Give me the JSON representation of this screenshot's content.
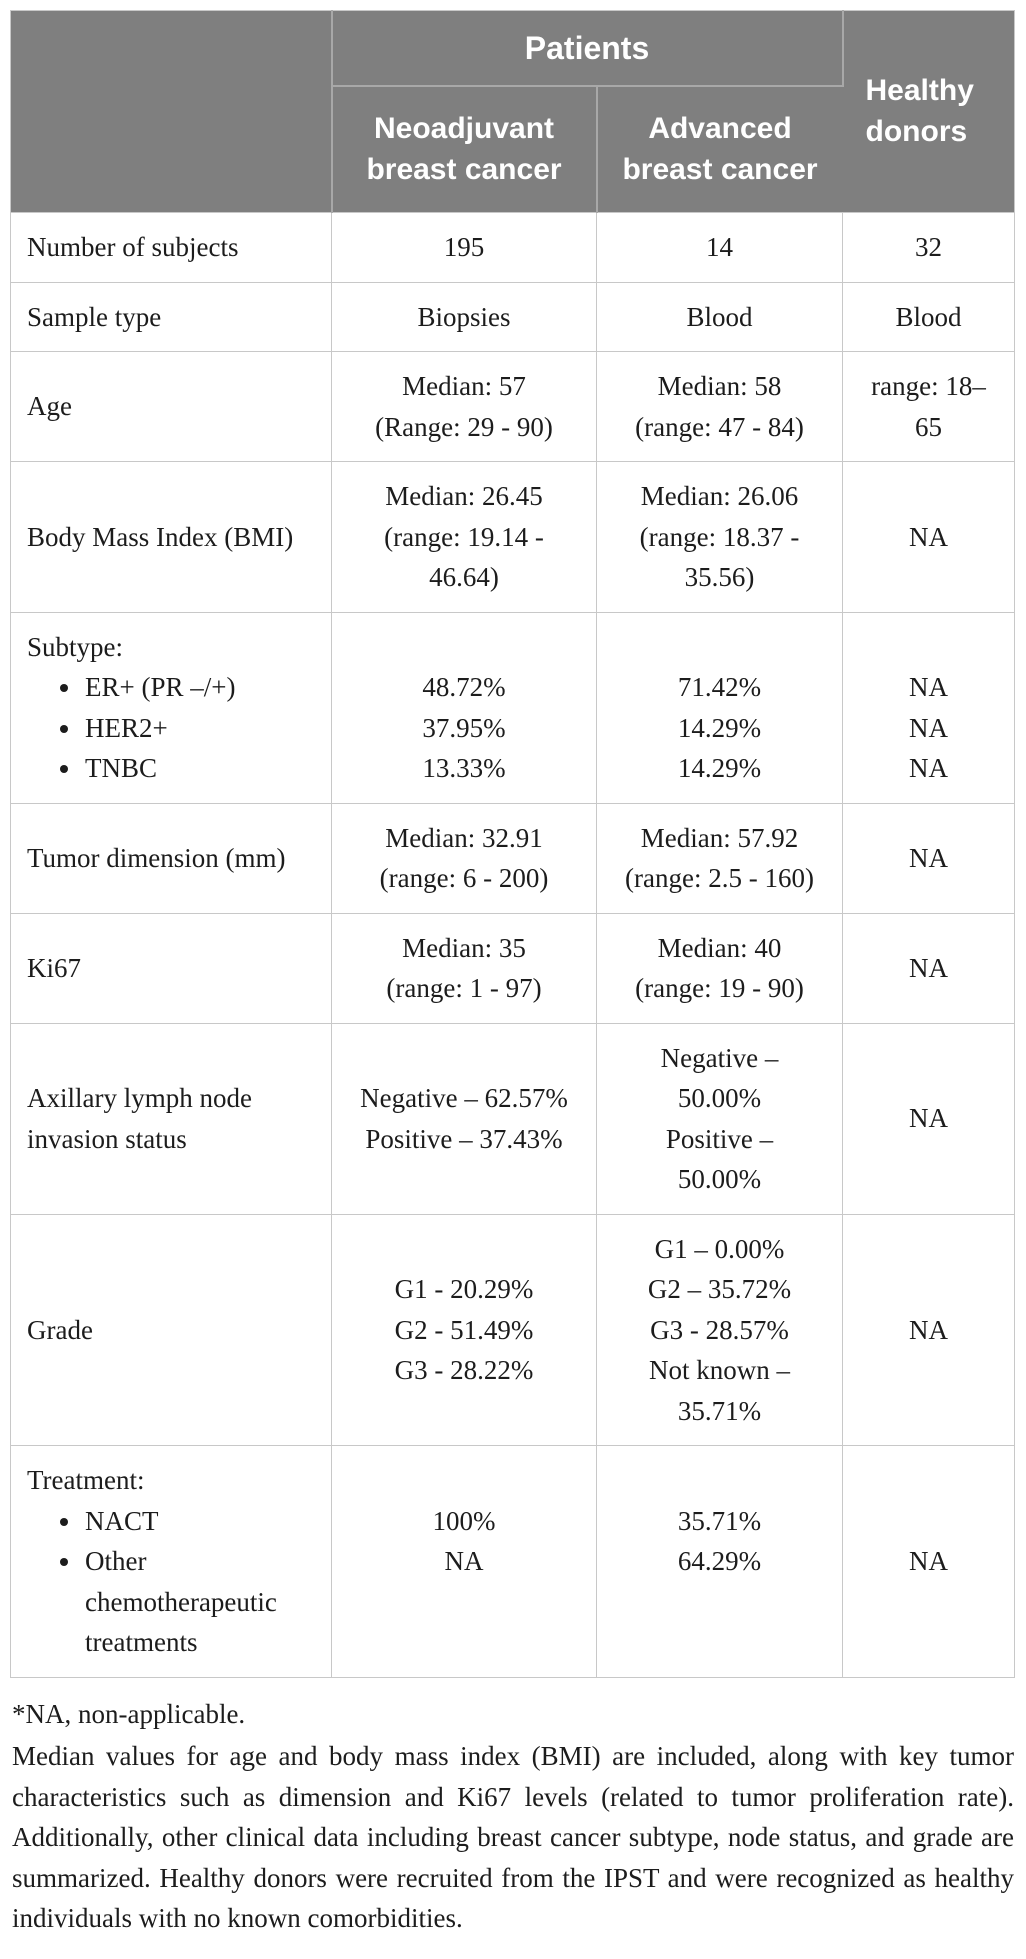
{
  "table": {
    "header": {
      "group_label": "Patients",
      "columns": [
        "Neoadjuvant breast cancer",
        "Advanced breast cancer"
      ],
      "healthy_label": "Healthy donors"
    },
    "rows": [
      {
        "label": "Number of subjects",
        "valign": "middle",
        "cells": [
          [
            "195"
          ],
          [
            "14"
          ],
          [
            "32"
          ]
        ]
      },
      {
        "label": "Sample type",
        "valign": "middle",
        "cells": [
          [
            "Biopsies"
          ],
          [
            "Blood"
          ],
          [
            "Blood"
          ]
        ]
      },
      {
        "label": "Age",
        "valign": "middle",
        "cells": [
          [
            "Median: 57",
            "(Range: 29 - 90)"
          ],
          [
            "Median: 58",
            "(range: 47 - 84)"
          ],
          [
            "range: 18–",
            "65"
          ]
        ]
      },
      {
        "label": "Body Mass Index (BMI)",
        "valign": "middle",
        "cells": [
          [
            "Median: 26.45",
            "(range: 19.14 -",
            "46.64)"
          ],
          [
            "Median: 26.06",
            "(range: 18.37 -",
            "35.56)"
          ],
          [
            "NA"
          ]
        ]
      },
      {
        "label": "Subtype:",
        "valign": "top",
        "bullets": [
          "ER+ (PR –/+)",
          "HER2+",
          "TNBC"
        ],
        "cells": [
          [
            "",
            "48.72%",
            "37.95%",
            "13.33%"
          ],
          [
            "",
            "71.42%",
            "14.29%",
            "14.29%"
          ],
          [
            "",
            "NA",
            "NA",
            "NA"
          ]
        ]
      },
      {
        "label": "Tumor dimension (mm)",
        "valign": "middle",
        "cells": [
          [
            "Median: 32.91",
            "(range: 6 - 200)"
          ],
          [
            "Median: 57.92",
            "(range: 2.5 - 160)"
          ],
          [
            "NA"
          ]
        ]
      },
      {
        "label": "Ki67",
        "valign": "middle",
        "cells": [
          [
            "Median: 35",
            "(range: 1 - 97)"
          ],
          [
            "Median: 40",
            "(range: 19 - 90)"
          ],
          [
            "NA"
          ]
        ]
      },
      {
        "label": "Axillary lymph node invasion status",
        "valign": "middle",
        "cells": [
          [
            "Negative – 62.57%",
            "Positive – 37.43%"
          ],
          [
            "Negative –",
            "50.00%",
            "Positive –",
            "50.00%"
          ],
          [
            "NA"
          ]
        ]
      },
      {
        "label": "Grade",
        "valign": "middle",
        "cells": [
          [
            "G1 - 20.29%",
            "G2 - 51.49%",
            "G3 - 28.22%"
          ],
          [
            "G1 – 0.00%",
            "G2 – 35.72%",
            "G3 - 28.57%",
            "Not known –",
            "35.71%"
          ],
          [
            "NA"
          ]
        ]
      },
      {
        "label": "Treatment:",
        "valign": "top",
        "bullets": [
          "NACT",
          "Other chemotherapeutic treatments"
        ],
        "cells": [
          [
            "",
            "100%",
            "NA"
          ],
          [
            "",
            "35.71%",
            "64.29%"
          ],
          [
            "",
            "",
            "NA"
          ]
        ]
      }
    ]
  },
  "footnote": "*NA, non-applicable.",
  "caption": "Median values for age and body mass index (BMI) are included, along with key tumor characteristics such as dimension and Ki67 levels (related to tumor proliferation rate). Additionally, other clinical data including breast cancer subtype, node status, and grade are summarized. Healthy donors were recruited from the IPST and were recognized as healthy individuals with no known comorbidities.",
  "colors": {
    "header_bg": "#7f7f7f",
    "header_text": "#ffffff",
    "header_divider": "#a8a8a8",
    "body_border": "#c8c8c8",
    "body_text": "#1c1c1c"
  }
}
